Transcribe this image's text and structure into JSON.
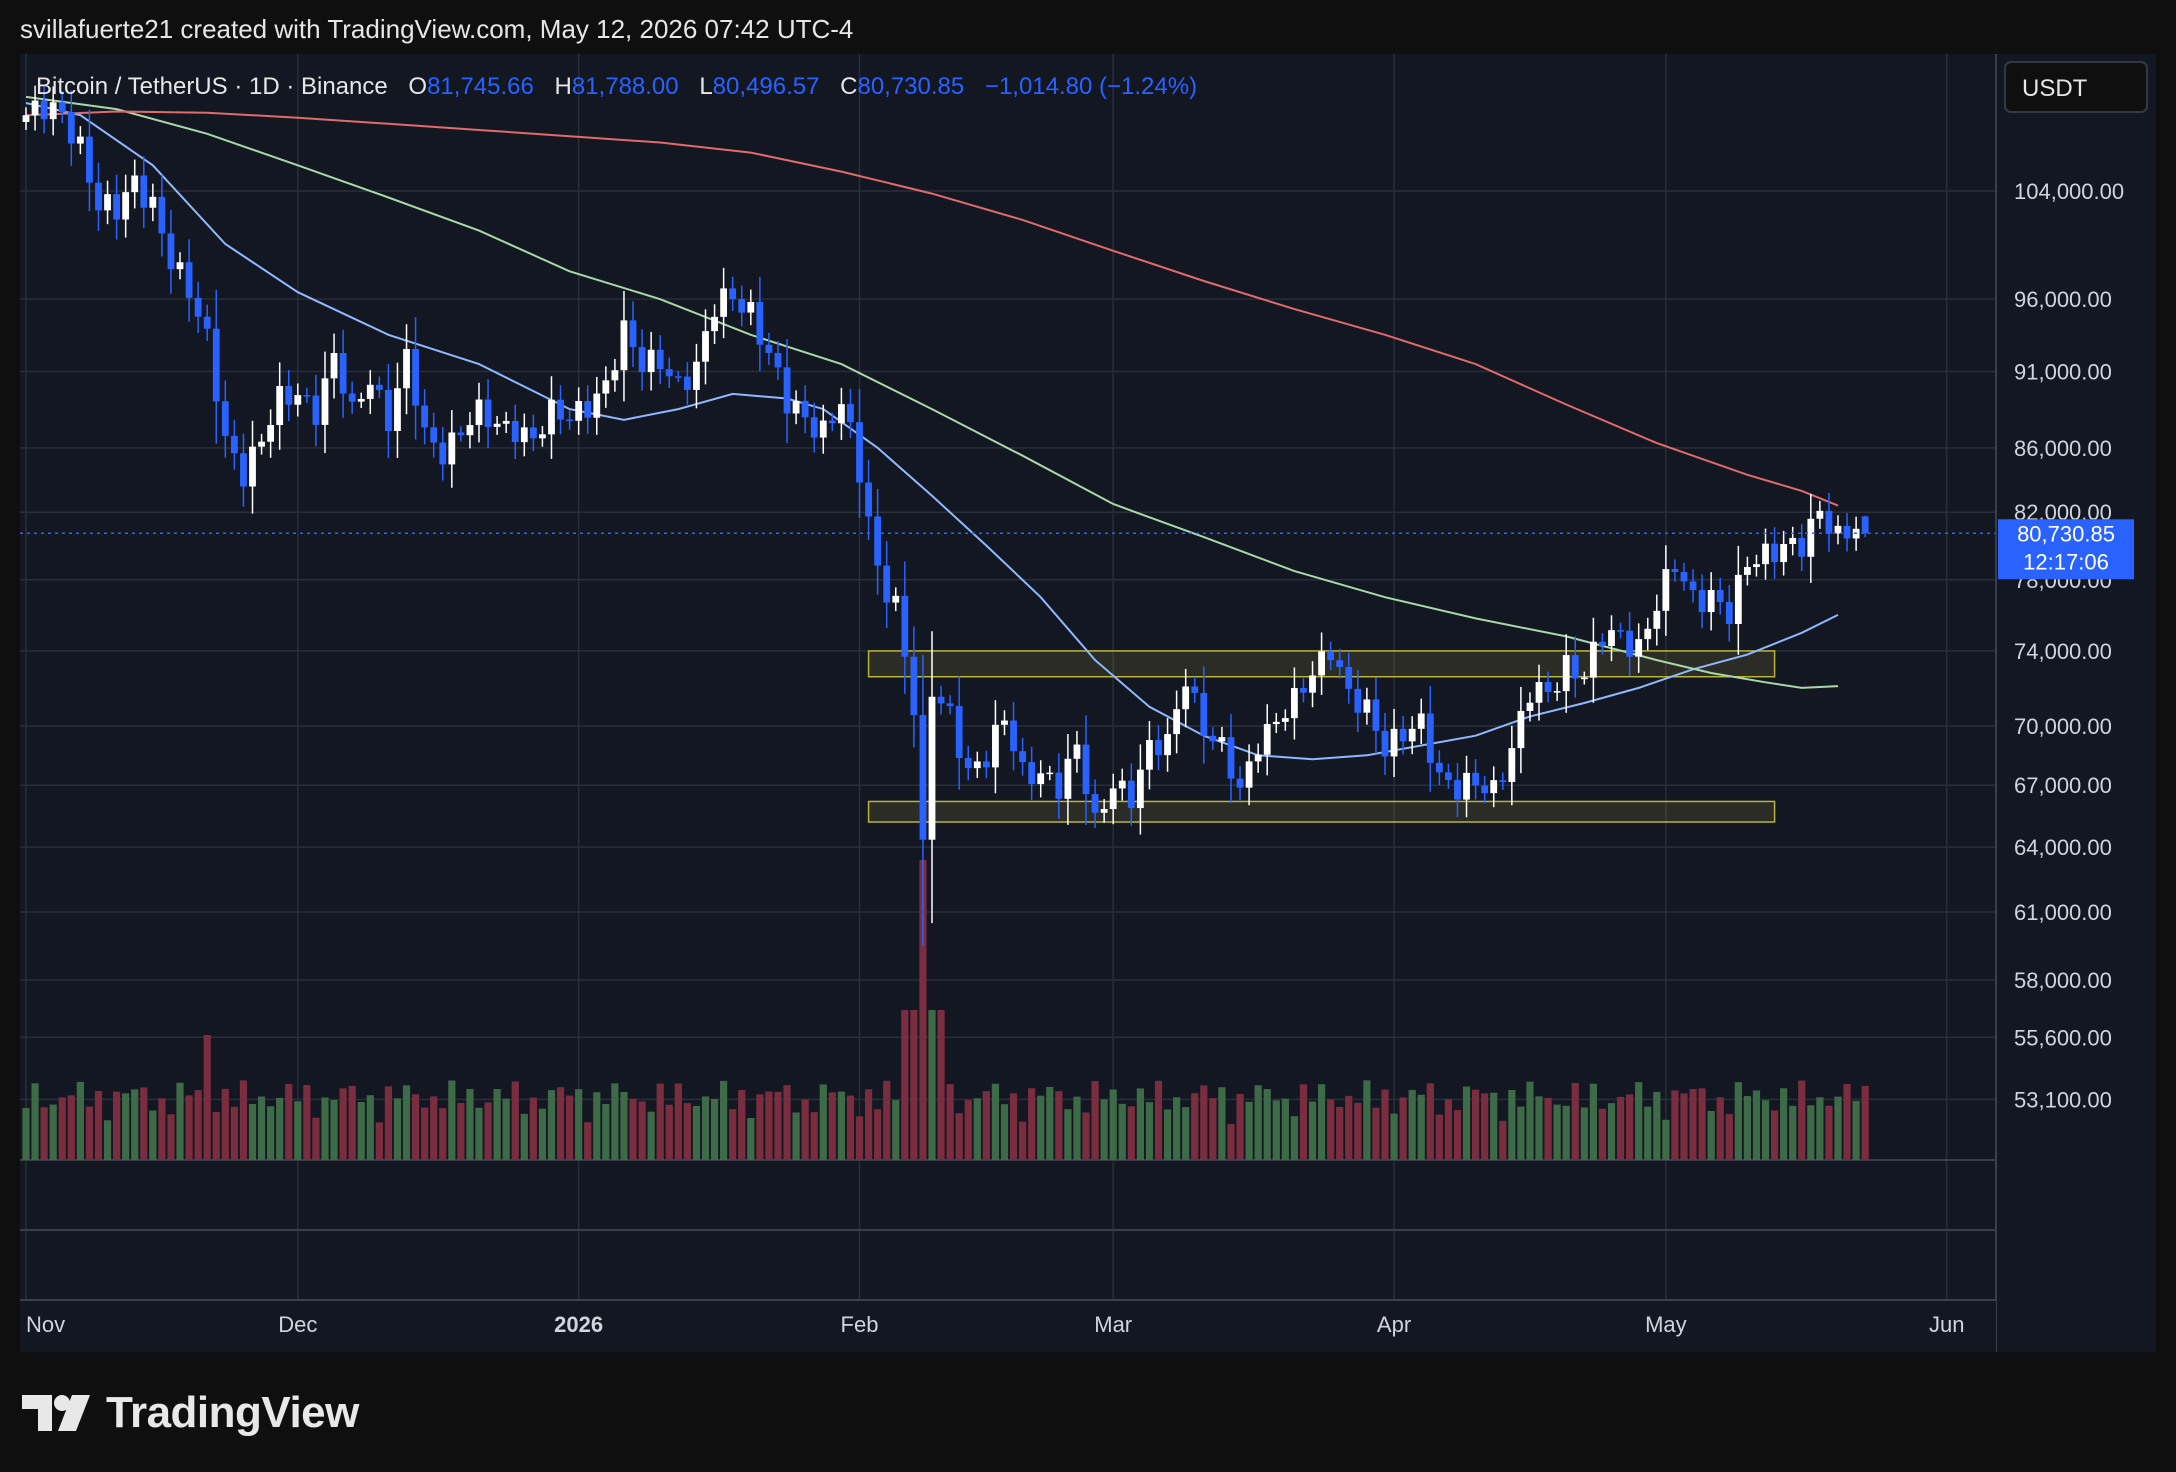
{
  "header": {
    "text": "svillafuerte21 created with TradingView.com, May 12, 2026 07:42 UTC-4"
  },
  "brand": {
    "name": "TradingView"
  },
  "currency_button": {
    "label": "USDT"
  },
  "legend": {
    "symbol": "Bitcoin / TetherUS · 1D · Binance",
    "open_label": "O",
    "open": "81,745.66",
    "high_label": "H",
    "high": "81,788.00",
    "low_label": "L",
    "low": "80,496.57",
    "close_label": "C",
    "close": "80,730.85",
    "change": "−1,014.80 (−1.24%)"
  },
  "price_tag": {
    "price": "80,730.85",
    "countdown": "12:17:06"
  },
  "colors": {
    "background": "#0f0f0f",
    "pane": "#131722",
    "grid": "#2a2e39",
    "up_candle": "#ffffff",
    "down_candle": "#2962ff",
    "volume_up": "#3d6b47",
    "volume_down": "#7a2d3f",
    "ma_fast": "#8fb8ff",
    "ma_mid": "#a8d8a8",
    "ma_slow": "#e06b6b",
    "zone_stroke": "#b8b43a",
    "legend_value": "#2962ff",
    "price_tag": "#2962ff"
  },
  "chart_data": {
    "type": "candlestick",
    "timeframe": "1D",
    "price_scale_ticks": [
      "104,000.00",
      "96,000.00",
      "91,000.00",
      "86,000.00",
      "82,000.00",
      "78,000.00",
      "74,000.00",
      "70,000.00",
      "67,000.00",
      "64,000.00",
      "61,000.00",
      "58,000.00",
      "55,600.00",
      "53,100.00"
    ],
    "price_scale_values": [
      104000,
      96000,
      91000,
      86000,
      82000,
      78000,
      74000,
      70000,
      67000,
      64000,
      61000,
      58000,
      55600,
      53100
    ],
    "time_labels": [
      {
        "label": "Nov",
        "index": 0,
        "bold": false
      },
      {
        "label": "Dec",
        "index": 30,
        "bold": false
      },
      {
        "label": "2026",
        "index": 61,
        "bold": true
      },
      {
        "label": "Feb",
        "index": 92,
        "bold": false
      },
      {
        "label": "Mar",
        "index": 120,
        "bold": false
      },
      {
        "label": "Apr",
        "index": 151,
        "bold": false
      },
      {
        "label": "May",
        "index": 181,
        "bold": false
      },
      {
        "label": "Jun",
        "index": 212,
        "bold": false
      }
    ],
    "last_price": 80730.85,
    "zones": [
      {
        "name": "resistance-zone",
        "from_index": 93,
        "to_index": 193,
        "low": 72600,
        "high": 74000
      },
      {
        "name": "support-zone",
        "from_index": 93,
        "to_index": 193,
        "low": 65200,
        "high": 66200
      }
    ],
    "anchors": [
      [
        0,
        110000,
        0
      ],
      [
        4,
        110000,
        0
      ],
      [
        6,
        108000,
        -2
      ],
      [
        8,
        103000,
        2
      ],
      [
        10,
        102000,
        0
      ],
      [
        12,
        104500,
        2
      ],
      [
        14,
        103500,
        0
      ],
      [
        16,
        99000,
        -2
      ],
      [
        18,
        96000,
        -2
      ],
      [
        20,
        93000,
        -2
      ],
      [
        22,
        87000,
        -2
      ],
      [
        24,
        84500,
        2
      ],
      [
        26,
        86000,
        2
      ],
      [
        28,
        89000,
        2
      ],
      [
        30,
        90000,
        0
      ],
      [
        32,
        88500,
        -2
      ],
      [
        34,
        91500,
        2
      ],
      [
        36,
        88000,
        -2
      ],
      [
        38,
        91000,
        2
      ],
      [
        40,
        88000,
        -2
      ],
      [
        42,
        91500,
        2
      ],
      [
        44,
        86500,
        -2
      ],
      [
        46,
        86000,
        0
      ],
      [
        48,
        87500,
        2
      ],
      [
        50,
        88000,
        0
      ],
      [
        52,
        87000,
        -2
      ],
      [
        54,
        87500,
        0
      ],
      [
        56,
        87000,
        0
      ],
      [
        58,
        88000,
        2
      ],
      [
        60,
        87500,
        0
      ],
      [
        62,
        89000,
        2
      ],
      [
        64,
        90500,
        2
      ],
      [
        66,
        93500,
        2
      ],
      [
        68,
        91000,
        -2
      ],
      [
        70,
        92000,
        2
      ],
      [
        72,
        90500,
        -2
      ],
      [
        74,
        91000,
        0
      ],
      [
        76,
        95000,
        2
      ],
      [
        78,
        96500,
        2
      ],
      [
        80,
        95500,
        0
      ],
      [
        82,
        92000,
        -2
      ],
      [
        84,
        88500,
        -2
      ],
      [
        86,
        88000,
        0
      ],
      [
        88,
        87500,
        0
      ],
      [
        90,
        89000,
        2
      ],
      [
        92,
        84000,
        -2
      ],
      [
        94,
        78500,
        -2
      ],
      [
        96,
        77000,
        -2
      ],
      [
        98,
        71000,
        -2
      ],
      [
        99,
        63500,
        -2
      ],
      [
        100,
        71500,
        2
      ],
      [
        102,
        70500,
        0
      ],
      [
        104,
        68000,
        -2
      ],
      [
        106,
        68500,
        2
      ],
      [
        108,
        70000,
        2
      ],
      [
        110,
        67500,
        -2
      ],
      [
        112,
        68000,
        2
      ],
      [
        114,
        67000,
        0
      ],
      [
        116,
        68500,
        2
      ],
      [
        118,
        65000,
        -2
      ],
      [
        120,
        67500,
        2
      ],
      [
        122,
        66500,
        0
      ],
      [
        124,
        68500,
        2
      ],
      [
        126,
        69000,
        2
      ],
      [
        128,
        73000,
        2
      ],
      [
        130,
        70000,
        -2
      ],
      [
        132,
        68500,
        0
      ],
      [
        134,
        66500,
        -2
      ],
      [
        136,
        69500,
        2
      ],
      [
        138,
        70500,
        2
      ],
      [
        140,
        71000,
        2
      ],
      [
        142,
        72500,
        2
      ],
      [
        144,
        74500,
        2
      ],
      [
        146,
        72000,
        -2
      ],
      [
        148,
        70500,
        0
      ],
      [
        150,
        68500,
        -2
      ],
      [
        152,
        70000,
        2
      ],
      [
        154,
        70500,
        0
      ],
      [
        156,
        67000,
        -2
      ],
      [
        158,
        66500,
        0
      ],
      [
        160,
        67500,
        2
      ],
      [
        162,
        67000,
        0
      ],
      [
        164,
        68500,
        2
      ],
      [
        166,
        71500,
        2
      ],
      [
        168,
        72000,
        0
      ],
      [
        170,
        73500,
        2
      ],
      [
        172,
        72500,
        0
      ],
      [
        174,
        74500,
        2
      ],
      [
        176,
        75000,
        0
      ],
      [
        178,
        74500,
        0
      ],
      [
        180,
        76500,
        2
      ],
      [
        182,
        78500,
        2
      ],
      [
        184,
        77000,
        -2
      ],
      [
        186,
        77500,
        2
      ],
      [
        188,
        76000,
        -2
      ],
      [
        190,
        78500,
        2
      ],
      [
        192,
        79500,
        2
      ],
      [
        194,
        80500,
        2
      ],
      [
        196,
        80000,
        0
      ],
      [
        198,
        81500,
        2
      ],
      [
        200,
        80500,
        -2
      ],
      [
        202,
        81745.66,
        2
      ],
      [
        203,
        80730.85,
        -2
      ]
    ],
    "last_bar": {
      "open": 81745.66,
      "high": 81788.0,
      "low": 80496.57,
      "close": 80730.85
    },
    "series": [
      {
        "name": "ma-fast",
        "color": "#8fb8ff",
        "points": [
          [
            0,
            111000
          ],
          [
            6,
            110000
          ],
          [
            14,
            106000
          ],
          [
            22,
            100000
          ],
          [
            30,
            96500
          ],
          [
            40,
            93500
          ],
          [
            50,
            91500
          ],
          [
            60,
            88500
          ],
          [
            66,
            87800
          ],
          [
            72,
            88500
          ],
          [
            78,
            89500
          ],
          [
            84,
            89200
          ],
          [
            88,
            88500
          ],
          [
            94,
            86000
          ],
          [
            100,
            83000
          ],
          [
            106,
            80000
          ],
          [
            112,
            77000
          ],
          [
            118,
            73500
          ],
          [
            124,
            71000
          ],
          [
            130,
            69500
          ],
          [
            136,
            68500
          ],
          [
            142,
            68300
          ],
          [
            148,
            68500
          ],
          [
            154,
            69000
          ],
          [
            160,
            69500
          ],
          [
            166,
            70500
          ],
          [
            172,
            71200
          ],
          [
            178,
            72000
          ],
          [
            184,
            73000
          ],
          [
            190,
            73800
          ],
          [
            196,
            75000
          ],
          [
            200,
            76000
          ]
        ]
      },
      {
        "name": "ma-mid",
        "color": "#a8d8a8",
        "points": [
          [
            0,
            111500
          ],
          [
            10,
            110500
          ],
          [
            20,
            108500
          ],
          [
            30,
            106000
          ],
          [
            40,
            103500
          ],
          [
            50,
            101000
          ],
          [
            60,
            98000
          ],
          [
            70,
            96000
          ],
          [
            80,
            93500
          ],
          [
            90,
            91500
          ],
          [
            100,
            88500
          ],
          [
            110,
            85500
          ],
          [
            120,
            82500
          ],
          [
            130,
            80500
          ],
          [
            140,
            78500
          ],
          [
            150,
            77000
          ],
          [
            160,
            75800
          ],
          [
            170,
            74800
          ],
          [
            180,
            73500
          ],
          [
            186,
            72800
          ],
          [
            192,
            72300
          ],
          [
            196,
            72000
          ],
          [
            200,
            72100
          ]
        ]
      },
      {
        "name": "ma-slow",
        "color": "#e06b6b",
        "points": [
          [
            0,
            110000
          ],
          [
            10,
            110300
          ],
          [
            20,
            110200
          ],
          [
            30,
            109800
          ],
          [
            40,
            109300
          ],
          [
            50,
            108800
          ],
          [
            60,
            108300
          ],
          [
            70,
            107800
          ],
          [
            80,
            107000
          ],
          [
            90,
            105500
          ],
          [
            100,
            103800
          ],
          [
            110,
            101800
          ],
          [
            120,
            99500
          ],
          [
            130,
            97300
          ],
          [
            140,
            95300
          ],
          [
            150,
            93500
          ],
          [
            160,
            91500
          ],
          [
            170,
            88800
          ],
          [
            180,
            86300
          ],
          [
            190,
            84300
          ],
          [
            196,
            83300
          ],
          [
            200,
            82400
          ]
        ]
      }
    ]
  }
}
